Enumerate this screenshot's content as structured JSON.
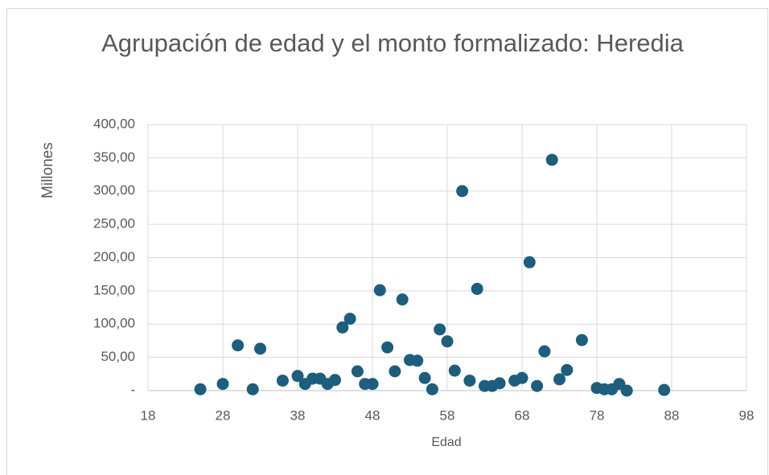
{
  "chart_data": {
    "type": "scatter",
    "title": "Agrupación de edad y el monto formalizado: Heredia",
    "xlabel": "Edad",
    "ylabel": "Millones",
    "color": "#1c5e7e",
    "grid": true,
    "xlim": [
      18,
      98
    ],
    "xticks": [
      18,
      28,
      38,
      48,
      58,
      68,
      78,
      88,
      98
    ],
    "ylim": [
      0,
      400
    ],
    "yticks": [
      {
        "value": 0,
        "label": "-"
      },
      {
        "value": 50,
        "label": "50,00"
      },
      {
        "value": 100,
        "label": "100,00"
      },
      {
        "value": 150,
        "label": "150,00"
      },
      {
        "value": 200,
        "label": "200,00"
      },
      {
        "value": 250,
        "label": "250,00"
      },
      {
        "value": 300,
        "label": "300,00"
      },
      {
        "value": 350,
        "label": "350,00"
      },
      {
        "value": 400,
        "label": "400,00"
      }
    ],
    "x": [
      25,
      28,
      30,
      32,
      33,
      36,
      38,
      39,
      40,
      41,
      42,
      43,
      44,
      45,
      46,
      47,
      48,
      49,
      50,
      51,
      52,
      53,
      54,
      55,
      56,
      57,
      58,
      59,
      60,
      61,
      62,
      63,
      64,
      65,
      67,
      68,
      69,
      70,
      71,
      72,
      73,
      74,
      76,
      78,
      79,
      80,
      81,
      82,
      87
    ],
    "values": [
      2,
      10,
      68,
      2,
      63,
      15,
      22,
      10,
      18,
      18,
      10,
      16,
      95,
      108,
      29,
      10,
      10,
      151,
      65,
      29,
      137,
      46,
      45,
      19,
      2,
      92,
      74,
      30,
      300,
      15,
      153,
      7,
      7,
      11,
      15,
      19,
      193,
      7,
      59,
      347,
      17,
      31,
      76,
      4,
      2,
      2,
      10,
      0,
      1
    ]
  }
}
